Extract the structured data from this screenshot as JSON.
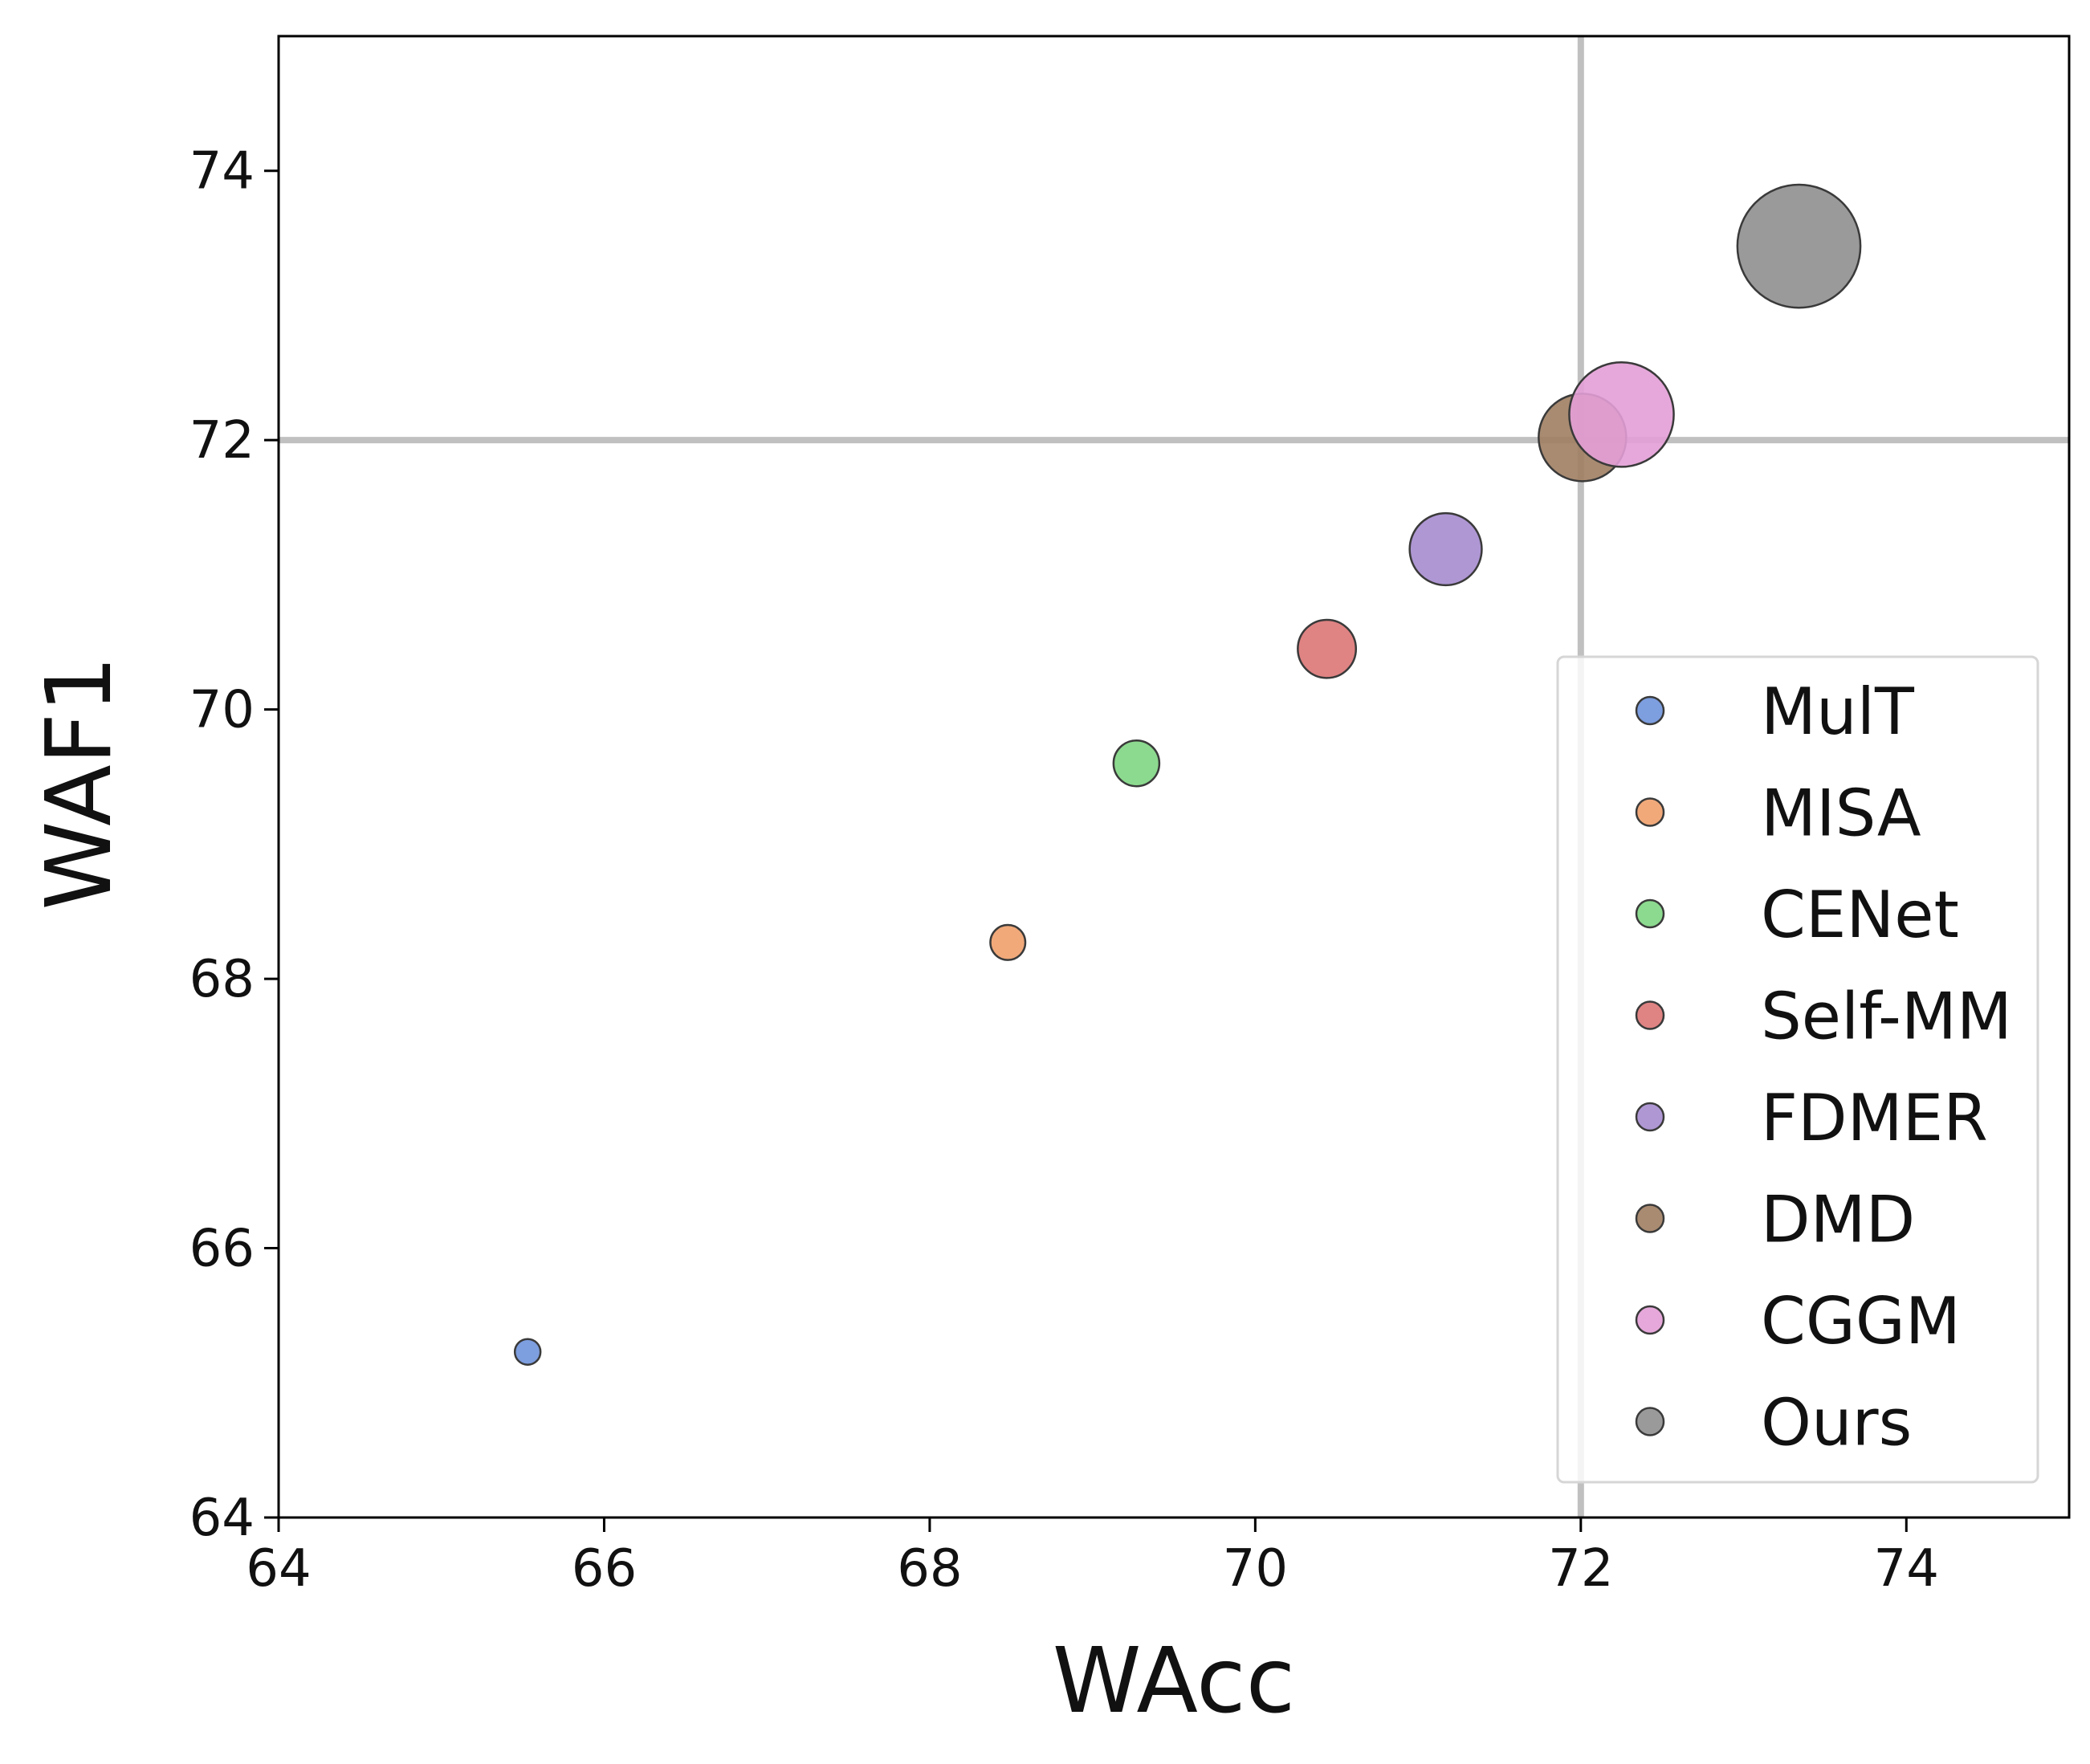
{
  "chart_data": {
    "type": "scatter",
    "title": "",
    "xlabel": "WAcc",
    "ylabel": "WAF1",
    "xlim": [
      64,
      75
    ],
    "ylim": [
      64,
      75
    ],
    "xticks": [
      64,
      66,
      68,
      70,
      72,
      74
    ],
    "yticks": [
      64,
      66,
      68,
      70,
      72,
      74
    ],
    "xtick_labels": [
      "64",
      "66",
      "68",
      "70",
      "72",
      "74"
    ],
    "ytick_labels": [
      "64",
      "66",
      "68",
      "70",
      "72",
      "74"
    ],
    "reference_lines": {
      "x": 72,
      "y": 72,
      "color": "#c0c0c0"
    },
    "grid": false,
    "legend_position": "lower-right",
    "series": [
      {
        "name": "MulT",
        "x": 65.53,
        "y": 65.23,
        "size_rank": 1,
        "color": "#6f93dc"
      },
      {
        "name": "MISA",
        "x": 68.48,
        "y": 68.27,
        "size_rank": 2,
        "color": "#f0a06c"
      },
      {
        "name": "CENet",
        "x": 69.27,
        "y": 69.6,
        "size_rank": 3,
        "color": "#7fd683"
      },
      {
        "name": "Self-MM",
        "x": 70.44,
        "y": 70.45,
        "size_rank": 4,
        "color": "#dd7575"
      },
      {
        "name": "FDMER",
        "x": 71.17,
        "y": 71.19,
        "size_rank": 5,
        "color": "#a68ccf"
      },
      {
        "name": "DMD",
        "x": 72.01,
        "y": 72.02,
        "size_rank": 6,
        "color": "#a07e62"
      },
      {
        "name": "CGGM",
        "x": 72.25,
        "y": 72.19,
        "size_rank": 7,
        "color": "#e39ed6"
      },
      {
        "name": "Ours",
        "x": 73.34,
        "y": 73.44,
        "size_rank": 8,
        "color": "#8f8f8f"
      }
    ]
  }
}
